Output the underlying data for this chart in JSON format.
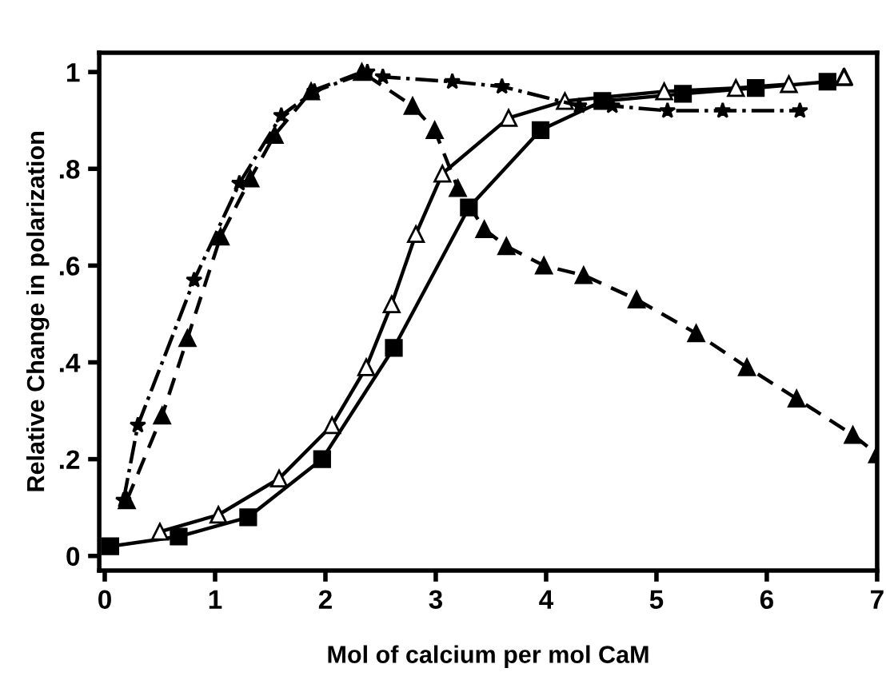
{
  "chart_data": {
    "type": "line",
    "xlabel": "Mol of calcium per mol CaM",
    "ylabel": "Relative Change in polarization",
    "xlim": [
      -0.05,
      7.0
    ],
    "ylim": [
      -0.03,
      1.04
    ],
    "xticks": [
      0,
      1,
      2,
      3,
      4,
      5,
      6,
      7
    ],
    "yticks": [
      0,
      {
        "value": 0.2,
        "label": ".2"
      },
      {
        "value": 0.4,
        "label": ".4"
      },
      {
        "value": 0.6,
        "label": ".6"
      },
      {
        "value": 0.8,
        "label": ".8"
      },
      1
    ],
    "grid": false,
    "series": [
      {
        "color": "#000000",
        "marker": "star",
        "line_style": "dashdot",
        "x": [
          0.17,
          0.3,
          0.81,
          1.22,
          1.6,
          1.9,
          2.38,
          2.52,
          3.15,
          3.6,
          4.3,
          4.6,
          5.1,
          5.6,
          6.3
        ],
        "values": [
          0.115,
          0.27,
          0.57,
          0.77,
          0.91,
          0.96,
          1.0,
          0.99,
          0.98,
          0.97,
          0.93,
          0.93,
          0.92,
          0.92,
          0.92
        ]
      },
      {
        "color": "#000000",
        "marker": "triangle",
        "line_style": "dashed",
        "x": [
          0.2,
          0.52,
          0.75,
          1.05,
          1.32,
          1.54,
          1.87,
          2.33,
          2.79,
          2.99,
          3.2,
          3.44,
          3.64,
          3.98,
          4.34,
          4.82,
          5.36,
          5.82,
          6.27,
          6.78,
          7.0
        ],
        "values": [
          0.115,
          0.29,
          0.45,
          0.66,
          0.78,
          0.87,
          0.96,
          1.0,
          0.93,
          0.88,
          0.76,
          0.675,
          0.64,
          0.6,
          0.58,
          0.53,
          0.46,
          0.39,
          0.325,
          0.25,
          0.21
        ]
      },
      {
        "color": "#ffffff",
        "marker": "triangle",
        "line_style": "solid",
        "x": [
          0.5,
          1.03,
          1.58,
          2.06,
          2.37,
          2.6,
          2.82,
          3.06,
          3.66,
          4.17,
          5.07,
          5.72,
          6.2
        ],
        "values": [
          0.05,
          0.085,
          0.16,
          0.27,
          0.39,
          0.52,
          0.665,
          0.79,
          0.905,
          0.94,
          0.96,
          0.967,
          0.975
        ]
      },
      {
        "color": "#000000",
        "marker": "square",
        "line_style": "solid",
        "x": [
          0.05,
          0.67,
          1.3,
          1.97,
          2.62,
          3.3,
          3.95,
          4.51,
          5.24,
          5.9,
          6.55
        ],
        "values": [
          0.02,
          0.04,
          0.08,
          0.2,
          0.43,
          0.72,
          0.88,
          0.94,
          0.955,
          0.967,
          0.98
        ]
      },
      {
        "type": "scatter",
        "color": "#ffffff",
        "marker": "triangle",
        "x": [
          6.7
        ],
        "values": [
          0.99
        ]
      }
    ]
  }
}
